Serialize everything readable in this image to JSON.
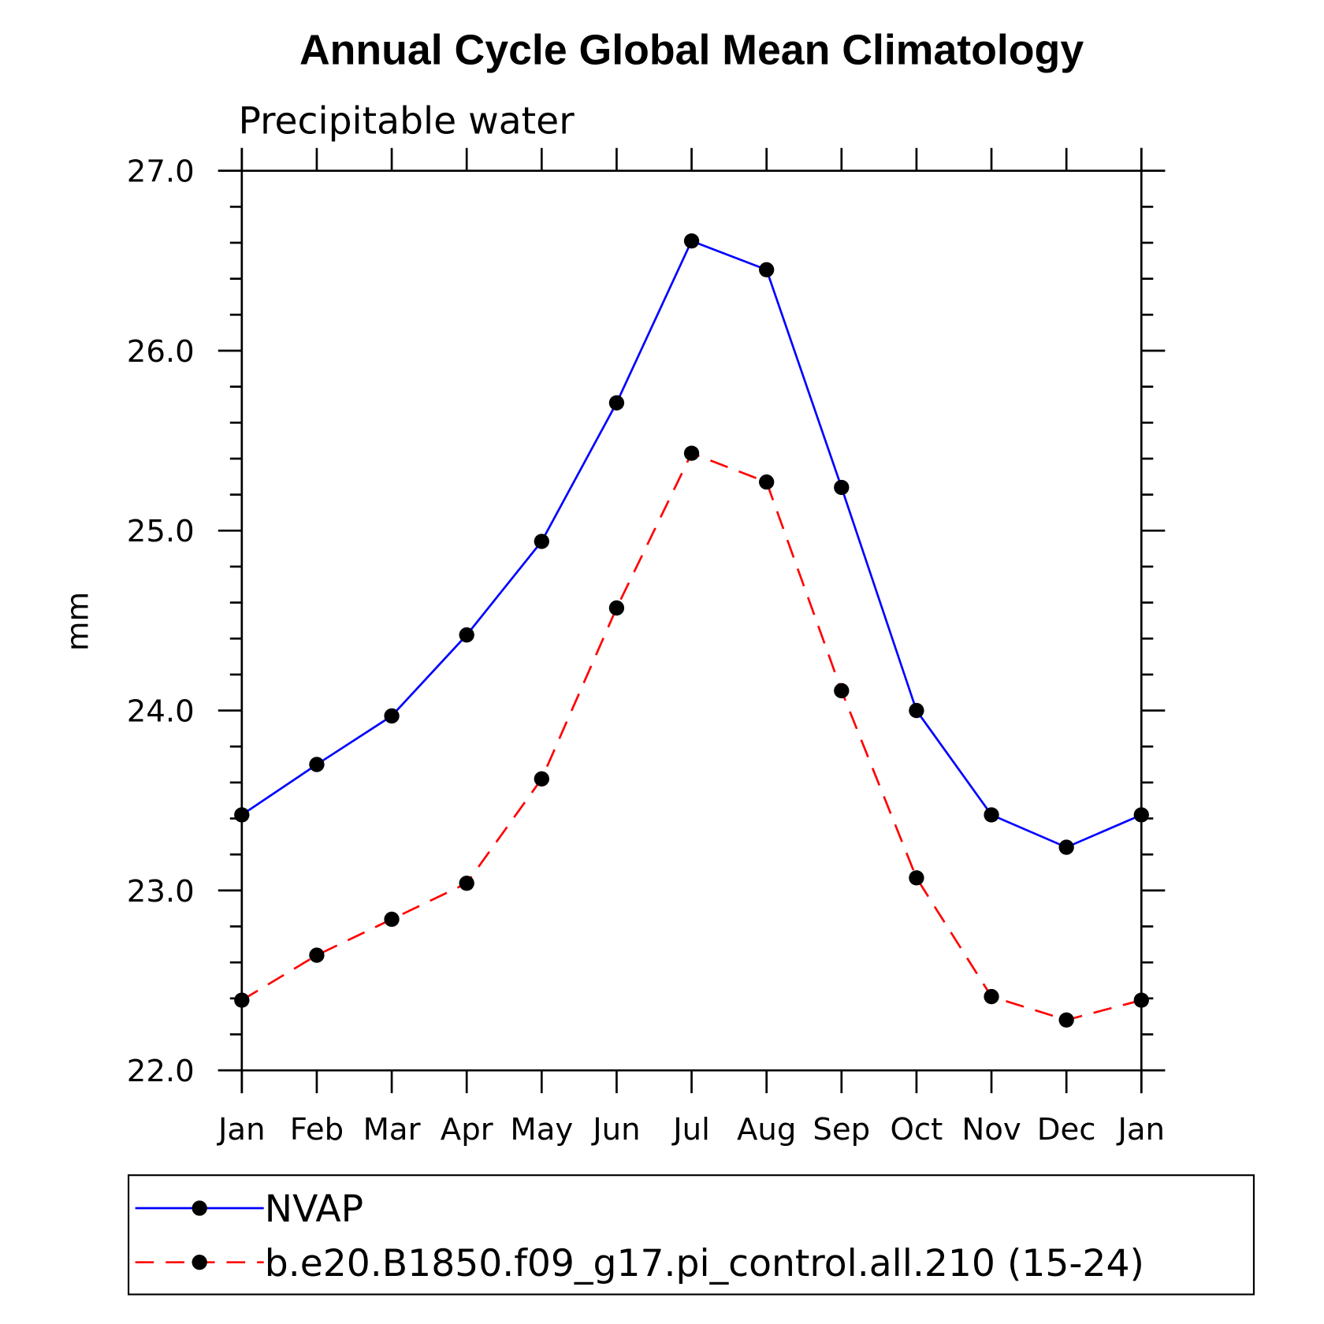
{
  "chart_data": {
    "type": "line",
    "title": "Annual Cycle Global Mean Climatology",
    "subtitle": "Precipitable water",
    "xlabel": "",
    "ylabel": "mm",
    "categories": [
      "Jan",
      "Feb",
      "Mar",
      "Apr",
      "May",
      "Jun",
      "Jul",
      "Aug",
      "Sep",
      "Oct",
      "Nov",
      "Dec",
      "Jan"
    ],
    "ylim": [
      22.0,
      27.0
    ],
    "yticks": [
      "22.0",
      "23.0",
      "24.0",
      "25.0",
      "26.0",
      "27.0"
    ],
    "grid": false,
    "legend_position": "bottom",
    "series": [
      {
        "name": "NVAP",
        "color": "#0000ff",
        "dash": "solid",
        "marker": "filled-circle",
        "values": [
          23.42,
          23.7,
          23.97,
          24.42,
          24.94,
          25.71,
          26.61,
          26.45,
          25.24,
          24.0,
          23.42,
          23.24,
          23.42
        ]
      },
      {
        "name": "b.e20.B1850.f09_g17.pi_control.all.210 (15-24)",
        "color": "#ff0000",
        "dash": "dashed",
        "marker": "filled-circle",
        "values": [
          22.39,
          22.64,
          22.84,
          23.04,
          23.62,
          24.57,
          25.43,
          25.27,
          24.11,
          23.07,
          22.41,
          22.28,
          22.39
        ]
      }
    ]
  }
}
